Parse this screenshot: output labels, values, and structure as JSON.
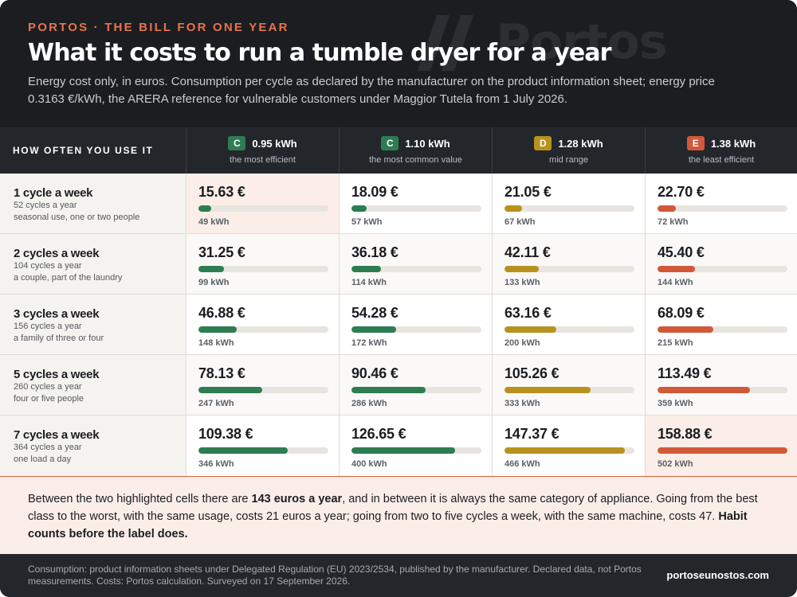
{
  "header": {
    "kicker": "PORTOS · THE BILL FOR ONE YEAR",
    "title": "What it costs to run a tumble dryer for a year",
    "subtitle": "Energy cost only, in euros. Consumption per cycle as declared by the manufacturer on the product information sheet; energy price 0.3163 €/kWh, the ARERA reference for vulnerable customers under Maggior Tutela from 1 July 2026.",
    "watermark": "Portos"
  },
  "colors": {
    "green": "#2e7d52",
    "gold": "#b8921e",
    "orange": "#d1593a"
  },
  "table": {
    "first_header": "HOW OFTEN YOU USE IT",
    "columns": [
      {
        "class": "C",
        "kwh": "0.95 kWh",
        "sub": "the most efficient",
        "color": "#2e7d52"
      },
      {
        "class": "C",
        "kwh": "1.10 kWh",
        "sub": "the most common value",
        "color": "#2e7d52"
      },
      {
        "class": "D",
        "kwh": "1.28 kWh",
        "sub": "mid range",
        "color": "#b8921e"
      },
      {
        "class": "E",
        "kwh": "1.38 kWh",
        "sub": "the least efficient",
        "color": "#d1593a"
      }
    ],
    "rows": [
      {
        "title": "1 cycle a week",
        "cycles": "52 cycles a year",
        "who": "seasonal use, one or two people",
        "cells": [
          {
            "cost": "15.63 €",
            "kwh": "49 kWh",
            "fill": 0.098
          },
          {
            "cost": "18.09 €",
            "kwh": "57 kWh",
            "fill": 0.114
          },
          {
            "cost": "21.05 €",
            "kwh": "67 kWh",
            "fill": 0.132
          },
          {
            "cost": "22.70 €",
            "kwh": "72 kWh",
            "fill": 0.143
          }
        ]
      },
      {
        "title": "2 cycles a week",
        "cycles": "104 cycles a year",
        "who": "a couple, part of the laundry",
        "cells": [
          {
            "cost": "31.25 €",
            "kwh": "99 kWh",
            "fill": 0.197
          },
          {
            "cost": "36.18 €",
            "kwh": "114 kWh",
            "fill": 0.228
          },
          {
            "cost": "42.11 €",
            "kwh": "133 kWh",
            "fill": 0.265
          },
          {
            "cost": "45.40 €",
            "kwh": "144 kWh",
            "fill": 0.286
          }
        ]
      },
      {
        "title": "3 cycles a week",
        "cycles": "156 cycles a year",
        "who": "a family of three or four",
        "cells": [
          {
            "cost": "46.88 €",
            "kwh": "148 kWh",
            "fill": 0.295
          },
          {
            "cost": "54.28 €",
            "kwh": "172 kWh",
            "fill": 0.342
          },
          {
            "cost": "63.16 €",
            "kwh": "200 kWh",
            "fill": 0.398
          },
          {
            "cost": "68.09 €",
            "kwh": "215 kWh",
            "fill": 0.429
          }
        ]
      },
      {
        "title": "5 cycles a week",
        "cycles": "260 cycles a year",
        "who": "four or five people",
        "cells": [
          {
            "cost": "78.13 €",
            "kwh": "247 kWh",
            "fill": 0.492
          },
          {
            "cost": "90.46 €",
            "kwh": "286 kWh",
            "fill": 0.569
          },
          {
            "cost": "105.26 €",
            "kwh": "333 kWh",
            "fill": 0.663
          },
          {
            "cost": "113.49 €",
            "kwh": "359 kWh",
            "fill": 0.714
          }
        ]
      },
      {
        "title": "7 cycles a week",
        "cycles": "364 cycles a year",
        "who": "one load a day",
        "cells": [
          {
            "cost": "109.38 €",
            "kwh": "346 kWh",
            "fill": 0.688
          },
          {
            "cost": "126.65 €",
            "kwh": "400 kWh",
            "fill": 0.797
          },
          {
            "cost": "147.37 €",
            "kwh": "466 kWh",
            "fill": 0.928
          },
          {
            "cost": "158.88 €",
            "kwh": "502 kWh",
            "fill": 1.0
          }
        ]
      }
    ]
  },
  "note": {
    "p1": "Between the two highlighted cells there are ",
    "b1": "143 euros a year",
    "p2": ", and in between it is always the same category of appliance. Going from the best class to the worst, with the same usage, costs 21 euros a year; going from two to five cycles a week, with the same machine, costs 47. ",
    "b2": "Habit counts before the label does."
  },
  "footer": {
    "text": "Consumption: product information sheets under Delegated Regulation (EU) 2023/2534, published by the manufacturer. Declared data, not Portos measurements. Costs: Portos calculation. Surveyed on 17 September 2026.",
    "site": "portoseunostos.com"
  }
}
